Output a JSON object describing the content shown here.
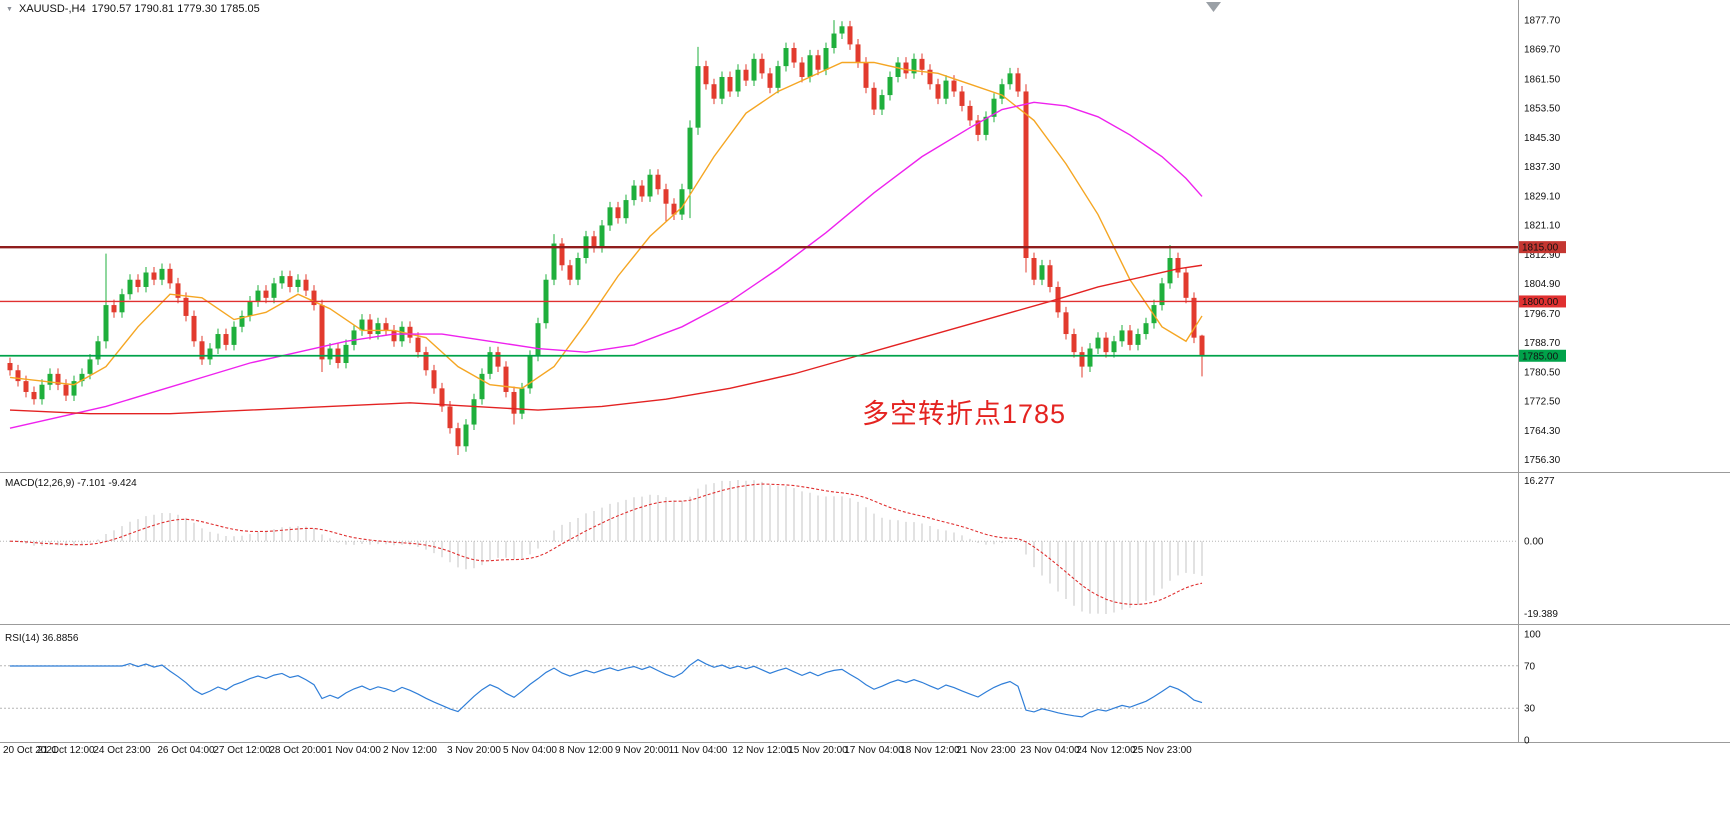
{
  "window": {
    "title_symbol": "XAUUSD-,H4",
    "title_ohlc": "1790.57 1790.81 1779.30 1785.05",
    "background": "#FFFFFF"
  },
  "colors": {
    "up": "#1FAF3C",
    "down": "#E23B2E",
    "ma_fast": "#F5A623",
    "ma_mid": "#EE22EE",
    "ma_slow": "#E32222",
    "macd_hist": "#C4C4C4",
    "macd_signal": "#E03030",
    "rsi": "#2F7ED8",
    "axis_text": "#111111",
    "separator": "#9B9B9B",
    "tag_text": "#FFFFFF"
  },
  "annotation": {
    "text": "多空转折点1785",
    "color": "#E42320"
  },
  "indicators": {
    "macd": {
      "label": "MACD(12,26,9) -7.101 -9.424",
      "params": [
        12,
        26,
        9
      ],
      "value": -7.101,
      "signal": -9.424,
      "ticks": [
        "16.277",
        "0.00",
        "-19.389"
      ]
    },
    "rsi": {
      "label": "RSI(14) 36.8856",
      "period": 14,
      "value": 36.8856,
      "ticks": [
        "100",
        "70",
        "30",
        "0"
      ],
      "levels": [
        70,
        30
      ]
    }
  },
  "chart_data": {
    "type": "candlestick",
    "symbol": "XAUUSD-",
    "timeframe": "H4",
    "title": "XAUUSD-,H4 1790.57 1790.81 1779.30 1785.05",
    "price_range": {
      "top": 1880.5,
      "bottom": 1754
    },
    "y_ticks": [
      "1877.70",
      "1869.70",
      "1861.50",
      "1853.50",
      "1845.30",
      "1837.30",
      "1829.10",
      "1821.10",
      "1812.90",
      "1804.90",
      "1796.70",
      "1788.70",
      "1780.50",
      "1772.50",
      "1764.30",
      "1756.30"
    ],
    "x_labels": [
      "20 Oct 2021",
      "21 Oct 12:00",
      "24 Oct 23:00",
      "26 Oct 04:00",
      "27 Oct 12:00",
      "28 Oct 20:00",
      "1 Nov 04:00",
      "2 Nov 12:00",
      "3 Nov 20:00",
      "5 Nov 04:00",
      "8 Nov 12:00",
      "9 Nov 20:00",
      "11 Nov 04:00",
      "12 Nov 12:00",
      "15 Nov 20:00",
      "17 Nov 04:00",
      "18 Nov 12:00",
      "21 Nov 23:00",
      "23 Nov 04:00",
      "24 Nov 12:00",
      "25 Nov 23:00"
    ],
    "x_label_indices": [
      0,
      7,
      14,
      22,
      29,
      36,
      43,
      50,
      58,
      65,
      72,
      79,
      86,
      94,
      101,
      108,
      115,
      122,
      130,
      137,
      144
    ],
    "horizontal_lines": [
      {
        "price": 1815,
        "label": "1815.00",
        "color": "#8F1D1D",
        "width": 2.4,
        "tag": "#C43631"
      },
      {
        "price": 1800,
        "label": "1800.00",
        "color": "#E03030",
        "width": 1.4,
        "tag": "#E03030"
      },
      {
        "price": 1785,
        "label": "1785.00",
        "color": "#00A24A",
        "width": 1.8,
        "tag": "#00A24A"
      }
    ],
    "moving_averages": [
      {
        "name": "ma-fast",
        "color": "#F5A623",
        "points": [
          [
            0,
            1779
          ],
          [
            4,
            1778
          ],
          [
            8,
            1777
          ],
          [
            12,
            1782
          ],
          [
            16,
            1793
          ],
          [
            20,
            1802
          ],
          [
            24,
            1801
          ],
          [
            28,
            1795
          ],
          [
            32,
            1797
          ],
          [
            36,
            1802
          ],
          [
            40,
            1798
          ],
          [
            44,
            1792
          ],
          [
            48,
            1792
          ],
          [
            52,
            1790
          ],
          [
            56,
            1782
          ],
          [
            60,
            1777
          ],
          [
            64,
            1776
          ],
          [
            68,
            1782
          ],
          [
            72,
            1794
          ],
          [
            76,
            1807
          ],
          [
            80,
            1818
          ],
          [
            84,
            1826
          ],
          [
            88,
            1840
          ],
          [
            92,
            1852
          ],
          [
            96,
            1858
          ],
          [
            100,
            1862
          ],
          [
            104,
            1866
          ],
          [
            108,
            1866
          ],
          [
            112,
            1864
          ],
          [
            116,
            1863
          ],
          [
            120,
            1860
          ],
          [
            124,
            1857
          ],
          [
            128,
            1850
          ],
          [
            132,
            1838
          ],
          [
            136,
            1824
          ],
          [
            140,
            1806
          ],
          [
            144,
            1793
          ],
          [
            147,
            1789
          ],
          [
            149,
            1796
          ]
        ]
      },
      {
        "name": "ma-mid",
        "color": "#EE22EE",
        "points": [
          [
            0,
            1765
          ],
          [
            6,
            1768
          ],
          [
            12,
            1771
          ],
          [
            18,
            1775
          ],
          [
            24,
            1779
          ],
          [
            30,
            1783
          ],
          [
            36,
            1786
          ],
          [
            42,
            1789
          ],
          [
            48,
            1791
          ],
          [
            54,
            1791
          ],
          [
            60,
            1789
          ],
          [
            66,
            1787
          ],
          [
            72,
            1786
          ],
          [
            78,
            1788
          ],
          [
            84,
            1793
          ],
          [
            90,
            1800
          ],
          [
            96,
            1809
          ],
          [
            102,
            1819
          ],
          [
            108,
            1830
          ],
          [
            114,
            1840
          ],
          [
            120,
            1848
          ],
          [
            124,
            1853
          ],
          [
            128,
            1855
          ],
          [
            132,
            1854
          ],
          [
            136,
            1851
          ],
          [
            140,
            1846
          ],
          [
            144,
            1840
          ],
          [
            147,
            1834
          ],
          [
            149,
            1829
          ]
        ]
      },
      {
        "name": "ma-slow",
        "color": "#E32222",
        "points": [
          [
            0,
            1770
          ],
          [
            10,
            1769
          ],
          [
            20,
            1769
          ],
          [
            30,
            1770
          ],
          [
            40,
            1771
          ],
          [
            50,
            1772
          ],
          [
            58,
            1771
          ],
          [
            66,
            1770
          ],
          [
            74,
            1771
          ],
          [
            82,
            1773
          ],
          [
            90,
            1776
          ],
          [
            98,
            1780
          ],
          [
            106,
            1785
          ],
          [
            114,
            1790
          ],
          [
            122,
            1795
          ],
          [
            130,
            1800
          ],
          [
            136,
            1804
          ],
          [
            142,
            1807
          ],
          [
            146,
            1809
          ],
          [
            149,
            1810
          ]
        ]
      }
    ],
    "candles": [
      [
        1783,
        1784.5,
        1779.5,
        1781
      ],
      [
        1781,
        1782.5,
        1776.5,
        1778
      ],
      [
        1778,
        1779.5,
        1773.5,
        1775
      ],
      [
        1775,
        1776.5,
        1771.5,
        1773
      ],
      [
        1773,
        1778.5,
        1771.5,
        1777
      ],
      [
        1777,
        1781.5,
        1775.5,
        1780
      ],
      [
        1780,
        1781.5,
        1775.5,
        1777
      ],
      [
        1777,
        1778.5,
        1772.5,
        1774
      ],
      [
        1774,
        1779.5,
        1772.5,
        1778
      ],
      [
        1778,
        1781.5,
        1776.5,
        1780
      ],
      [
        1780,
        1785.5,
        1778.5,
        1784
      ],
      [
        1784,
        1790.5,
        1782.5,
        1789
      ],
      [
        1789,
        1813.2,
        1787,
        1799
      ],
      [
        1799,
        1800.5,
        1795.5,
        1797
      ],
      [
        1797,
        1803.5,
        1795.5,
        1802
      ],
      [
        1802,
        1807.5,
        1800.5,
        1806
      ],
      [
        1806,
        1807.5,
        1802.5,
        1804
      ],
      [
        1804,
        1809.5,
        1802.5,
        1808
      ],
      [
        1808,
        1809.5,
        1804.5,
        1806
      ],
      [
        1806,
        1810.5,
        1804.5,
        1809
      ],
      [
        1809,
        1810.5,
        1803.5,
        1805
      ],
      [
        1805,
        1806.5,
        1799.5,
        1801
      ],
      [
        1801,
        1802.5,
        1794.5,
        1796
      ],
      [
        1796,
        1797.5,
        1787.5,
        1789
      ],
      [
        1789,
        1790.5,
        1782.5,
        1784
      ],
      [
        1784,
        1788.5,
        1782.5,
        1787
      ],
      [
        1787,
        1792.5,
        1785.5,
        1791
      ],
      [
        1791,
        1792.5,
        1786.5,
        1788
      ],
      [
        1788,
        1794.5,
        1786.5,
        1793
      ],
      [
        1793,
        1797.5,
        1791.5,
        1796
      ],
      [
        1796,
        1801.5,
        1794.5,
        1800
      ],
      [
        1800,
        1804.5,
        1798.5,
        1803
      ],
      [
        1803,
        1804.5,
        1799.5,
        1801
      ],
      [
        1801,
        1806.5,
        1799.5,
        1805
      ],
      [
        1805,
        1808.5,
        1803.5,
        1807
      ],
      [
        1807,
        1808.5,
        1802.5,
        1804
      ],
      [
        1804,
        1807.5,
        1802.5,
        1806
      ],
      [
        1806,
        1807.5,
        1801.5,
        1803
      ],
      [
        1803,
        1804.5,
        1797.5,
        1799
      ],
      [
        1799,
        1800.5,
        1780.5,
        1784
      ],
      [
        1784,
        1788.5,
        1782.5,
        1787
      ],
      [
        1787,
        1788.5,
        1781.5,
        1783
      ],
      [
        1783,
        1789.5,
        1781.5,
        1788
      ],
      [
        1788,
        1793.5,
        1786.5,
        1792
      ],
      [
        1792,
        1796.5,
        1790.5,
        1795
      ],
      [
        1795,
        1796.5,
        1789.5,
        1791
      ],
      [
        1791,
        1795.5,
        1789.5,
        1794
      ],
      [
        1794,
        1795.5,
        1790.5,
        1792
      ],
      [
        1792,
        1793.5,
        1787.5,
        1789
      ],
      [
        1789,
        1794.5,
        1787.5,
        1793
      ],
      [
        1793,
        1794.5,
        1788.5,
        1790
      ],
      [
        1790,
        1791.5,
        1784.5,
        1786
      ],
      [
        1786,
        1787.5,
        1779.5,
        1781
      ],
      [
        1781,
        1782.5,
        1774.5,
        1776
      ],
      [
        1776,
        1777.5,
        1769.5,
        1771
      ],
      [
        1771,
        1772.5,
        1763.5,
        1765
      ],
      [
        1765,
        1766.5,
        1757.6,
        1760
      ],
      [
        1760,
        1767.5,
        1758.5,
        1766
      ],
      [
        1766,
        1774.5,
        1764.5,
        1773
      ],
      [
        1773,
        1781.5,
        1771.5,
        1780
      ],
      [
        1780,
        1787.5,
        1778.5,
        1786
      ],
      [
        1786,
        1787.5,
        1780.5,
        1782
      ],
      [
        1782,
        1783.5,
        1773.5,
        1775
      ],
      [
        1775,
        1776.5,
        1766,
        1769
      ],
      [
        1769,
        1777.5,
        1767.5,
        1776
      ],
      [
        1776,
        1786.5,
        1774.5,
        1785
      ],
      [
        1785,
        1795.5,
        1783.5,
        1794
      ],
      [
        1794,
        1807.5,
        1792.5,
        1806
      ],
      [
        1806,
        1818.6,
        1804.5,
        1816
      ],
      [
        1816,
        1817.5,
        1808.5,
        1810
      ],
      [
        1810,
        1811.5,
        1804.5,
        1806
      ],
      [
        1806,
        1813.5,
        1804.5,
        1812
      ],
      [
        1812,
        1819.5,
        1810.5,
        1818
      ],
      [
        1818,
        1819.5,
        1813.5,
        1815
      ],
      [
        1815,
        1822.5,
        1813.5,
        1821
      ],
      [
        1821,
        1827.5,
        1819.5,
        1826
      ],
      [
        1826,
        1827.5,
        1821.5,
        1823
      ],
      [
        1823,
        1829.5,
        1821.5,
        1828
      ],
      [
        1828,
        1833.5,
        1826.5,
        1832
      ],
      [
        1832,
        1833.5,
        1827.5,
        1829
      ],
      [
        1829,
        1836.5,
        1827.5,
        1835
      ],
      [
        1835,
        1836.5,
        1829.5,
        1831
      ],
      [
        1831,
        1832.5,
        1822,
        1827
      ],
      [
        1827,
        1828.5,
        1822.5,
        1824
      ],
      [
        1824,
        1832.5,
        1822.5,
        1831
      ],
      [
        1831,
        1850,
        1823,
        1848
      ],
      [
        1848,
        1870.3,
        1846,
        1865
      ],
      [
        1865,
        1866.5,
        1858.5,
        1860
      ],
      [
        1860,
        1861.5,
        1854.5,
        1856
      ],
      [
        1856,
        1863.5,
        1854.5,
        1862
      ],
      [
        1862,
        1863.5,
        1856.5,
        1858
      ],
      [
        1858,
        1865.5,
        1856.5,
        1864
      ],
      [
        1864,
        1865.5,
        1859.5,
        1861
      ],
      [
        1861,
        1868.5,
        1859.5,
        1867
      ],
      [
        1867,
        1868.5,
        1861.5,
        1863
      ],
      [
        1863,
        1864.5,
        1857.5,
        1859
      ],
      [
        1859,
        1866.5,
        1857.5,
        1865
      ],
      [
        1865,
        1871.5,
        1863.5,
        1870
      ],
      [
        1870,
        1871.5,
        1864.5,
        1866
      ],
      [
        1866,
        1867.5,
        1860.5,
        1862
      ],
      [
        1862,
        1869.5,
        1860.5,
        1868
      ],
      [
        1868,
        1869.5,
        1862.5,
        1864
      ],
      [
        1864,
        1871.5,
        1862.5,
        1870
      ],
      [
        1870,
        1877.7,
        1868.5,
        1874
      ],
      [
        1874,
        1877.4,
        1872.5,
        1876
      ],
      [
        1876,
        1877.5,
        1869.5,
        1871
      ],
      [
        1871,
        1872.5,
        1864.5,
        1866
      ],
      [
        1866,
        1867.5,
        1857.5,
        1859
      ],
      [
        1859,
        1860.5,
        1851.5,
        1853
      ],
      [
        1853,
        1858.5,
        1851.5,
        1857
      ],
      [
        1857,
        1863.5,
        1855.5,
        1862
      ],
      [
        1862,
        1867.5,
        1860.5,
        1866
      ],
      [
        1866,
        1867.5,
        1861.5,
        1863
      ],
      [
        1863,
        1868.5,
        1861.5,
        1867
      ],
      [
        1867,
        1868.5,
        1862.5,
        1864
      ],
      [
        1864,
        1865.5,
        1858.5,
        1860
      ],
      [
        1860,
        1861.5,
        1854.5,
        1856
      ],
      [
        1856,
        1862.5,
        1854.5,
        1861
      ],
      [
        1861,
        1862.5,
        1856.5,
        1858
      ],
      [
        1858,
        1859.5,
        1852.5,
        1854
      ],
      [
        1854,
        1855.5,
        1848.5,
        1850
      ],
      [
        1850,
        1851.5,
        1844.3,
        1846
      ],
      [
        1846,
        1852.5,
        1844.5,
        1851
      ],
      [
        1851,
        1857.5,
        1849.5,
        1856
      ],
      [
        1856,
        1861.5,
        1854.5,
        1860
      ],
      [
        1860,
        1864.5,
        1858.5,
        1863
      ],
      [
        1863,
        1864.5,
        1856.5,
        1858
      ],
      [
        1858,
        1860,
        1808,
        1812
      ],
      [
        1812,
        1813.5,
        1804.5,
        1806
      ],
      [
        1806,
        1811.5,
        1804.5,
        1810
      ],
      [
        1810,
        1811.5,
        1802.5,
        1804
      ],
      [
        1804,
        1805.5,
        1795.5,
        1797
      ],
      [
        1797,
        1798.5,
        1789.5,
        1791
      ],
      [
        1791,
        1792.5,
        1784.5,
        1786
      ],
      [
        1786,
        1787.5,
        1779,
        1782
      ],
      [
        1782,
        1788.5,
        1780.5,
        1787
      ],
      [
        1787,
        1791.5,
        1785.5,
        1790
      ],
      [
        1790,
        1791.5,
        1784.5,
        1786
      ],
      [
        1786,
        1790.5,
        1784.5,
        1789
      ],
      [
        1789,
        1793.5,
        1787.5,
        1792
      ],
      [
        1792,
        1793.5,
        1786.5,
        1788
      ],
      [
        1788,
        1792.5,
        1786.5,
        1791
      ],
      [
        1791,
        1795.5,
        1789.5,
        1794
      ],
      [
        1794,
        1800.5,
        1792.5,
        1799
      ],
      [
        1799,
        1806.5,
        1797.5,
        1805
      ],
      [
        1805,
        1815.6,
        1803.5,
        1812
      ],
      [
        1812,
        1813.5,
        1806.5,
        1808
      ],
      [
        1808,
        1809.5,
        1799.5,
        1801
      ],
      [
        1801,
        1802.5,
        1788.5,
        1790
      ],
      [
        1790.57,
        1790.81,
        1779.3,
        1785.05
      ]
    ]
  }
}
